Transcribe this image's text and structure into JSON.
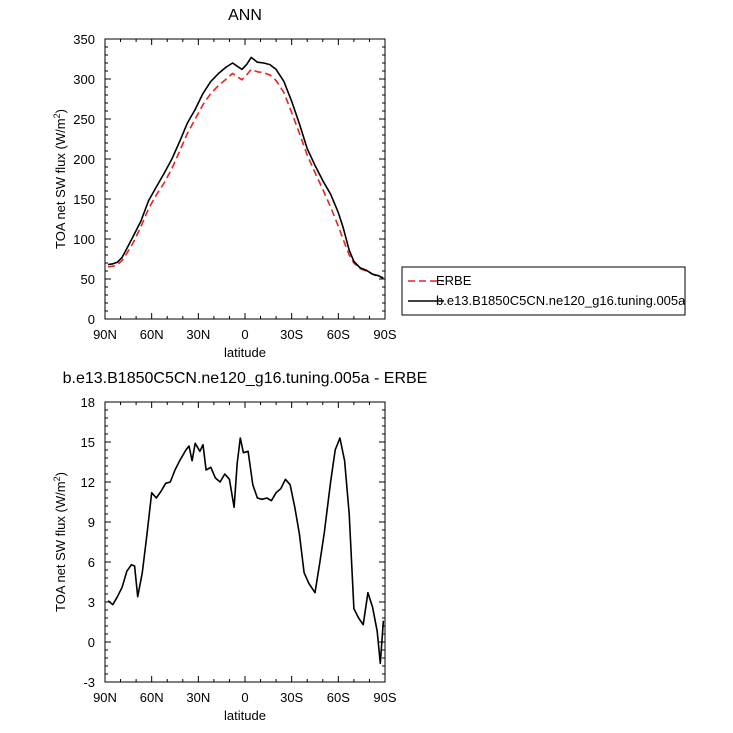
{
  "chart_data": [
    {
      "type": "line",
      "title": "ANN",
      "xlabel": "latitude",
      "ylabel": "TOA net SW flux (W/m",
      "ylabel_sup": "2",
      "ylabel_close": ")",
      "xlim": [
        90,
        -90
      ],
      "ylim": [
        0,
        350
      ],
      "x_ticks": [
        90,
        60,
        30,
        0,
        -30,
        -60,
        -90
      ],
      "x_tick_labels": [
        "90N",
        "60N",
        "30N",
        "0",
        "30S",
        "60S",
        "90S"
      ],
      "y_ticks": [
        0,
        50,
        100,
        150,
        200,
        250,
        300,
        350
      ],
      "y_tick_labels": [
        "0",
        "50",
        "100",
        "150",
        "200",
        "250",
        "300",
        "350"
      ],
      "grid": false,
      "legend_position": "right",
      "series": [
        {
          "name": "ERBE",
          "color": "#e8231c",
          "dash": "dashed",
          "x": [
            88,
            85,
            82,
            79,
            76,
            72,
            67,
            62,
            57,
            52,
            47,
            42,
            37,
            32,
            27,
            22,
            17,
            12,
            8,
            5,
            2,
            -1,
            -4,
            -8,
            -12,
            -16,
            -20,
            -25,
            -30,
            -35,
            -40,
            -45,
            -50,
            -55,
            -60,
            -63,
            -67,
            -70,
            -74,
            -78,
            -82,
            -86,
            -89
          ],
          "y": [
            65,
            66,
            68,
            73,
            82,
            95,
            115,
            138,
            155,
            170,
            188,
            210,
            232,
            250,
            268,
            282,
            292,
            300,
            307,
            303,
            299,
            305,
            312,
            309,
            308,
            305,
            298,
            283,
            258,
            232,
            205,
            183,
            162,
            140,
            116,
            100,
            80,
            70,
            63,
            60,
            56,
            53,
            51
          ]
        },
        {
          "name": "b.e13.B1850C5CN.ne120_g16.tuning.005a",
          "color": "#000000",
          "dash": "solid",
          "x": [
            88,
            85,
            82,
            79,
            76,
            72,
            67,
            62,
            57,
            52,
            47,
            42,
            37,
            32,
            27,
            22,
            17,
            12,
            8,
            5,
            2,
            -1,
            -4,
            -8,
            -12,
            -16,
            -20,
            -25,
            -30,
            -35,
            -40,
            -45,
            -50,
            -55,
            -60,
            -63,
            -67,
            -70,
            -74,
            -78,
            -82,
            -86,
            -89
          ],
          "y": [
            68,
            69,
            71,
            77,
            88,
            103,
            122,
            148,
            165,
            182,
            200,
            222,
            245,
            262,
            282,
            297,
            307,
            315,
            320,
            316,
            312,
            318,
            327,
            321,
            320,
            318,
            312,
            297,
            272,
            244,
            213,
            192,
            173,
            156,
            133,
            115,
            86,
            72,
            64,
            61,
            56,
            54,
            51
          ]
        }
      ]
    },
    {
      "type": "line",
      "title": "b.e13.B1850C5CN.ne120_g16.tuning.005a - ERBE",
      "xlabel": "latitude",
      "ylabel": "TOA net SW flux (W/m",
      "ylabel_sup": "2",
      "ylabel_close": ")",
      "xlim": [
        90,
        -90
      ],
      "ylim": [
        -3,
        18
      ],
      "x_ticks": [
        90,
        60,
        30,
        0,
        -30,
        -60,
        -90
      ],
      "x_tick_labels": [
        "90N",
        "60N",
        "30N",
        "0",
        "30S",
        "60S",
        "90S"
      ],
      "y_ticks": [
        -3,
        0,
        3,
        6,
        9,
        12,
        15,
        18
      ],
      "y_tick_labels": [
        "-3",
        "0",
        "3",
        "6",
        "9",
        "12",
        "15",
        "18"
      ],
      "grid": false,
      "series": [
        {
          "color": "#000000",
          "dash": "solid",
          "x": [
            88,
            85,
            82,
            79,
            76,
            73,
            71,
            69,
            66,
            63,
            60,
            57,
            54,
            51,
            48,
            45,
            42,
            38,
            36,
            34,
            32,
            29,
            27,
            25,
            22,
            19,
            16,
            13,
            10,
            7,
            5,
            3,
            1,
            -2,
            -5,
            -8,
            -11,
            -14,
            -17,
            -20,
            -23,
            -26,
            -29,
            -32,
            -35,
            -38,
            -41,
            -45,
            -48,
            -51,
            -55,
            -58,
            -61,
            -64,
            -67,
            -70,
            -73,
            -76,
            -79,
            -82,
            -85,
            -87,
            -89
          ],
          "y": [
            3.1,
            2.8,
            3.4,
            4.1,
            5.3,
            5.8,
            5.7,
            3.4,
            5.2,
            8.1,
            11.2,
            10.8,
            11.3,
            11.9,
            12.0,
            12.9,
            13.6,
            14.4,
            14.7,
            13.6,
            14.9,
            14.3,
            14.8,
            12.9,
            13.1,
            12.3,
            12.0,
            12.6,
            12.2,
            10.1,
            13.4,
            15.3,
            14.2,
            14.3,
            11.8,
            10.8,
            10.7,
            10.8,
            10.6,
            11.2,
            11.5,
            12.2,
            11.8,
            10.1,
            8.1,
            5.2,
            4.4,
            3.7,
            5.9,
            8.2,
            12.0,
            14.4,
            15.3,
            13.6,
            9.6,
            2.5,
            1.8,
            1.3,
            3.7,
            2.6,
            0.8,
            -1.6,
            1.6
          ]
        }
      ]
    }
  ],
  "legend": {
    "items": [
      {
        "label": "ERBE",
        "color": "#e8231c",
        "dash": "dashed"
      },
      {
        "label": "b.e13.B1850C5CN.ne120_g16.tuning.005a",
        "color": "#000000",
        "dash": "solid"
      }
    ]
  }
}
